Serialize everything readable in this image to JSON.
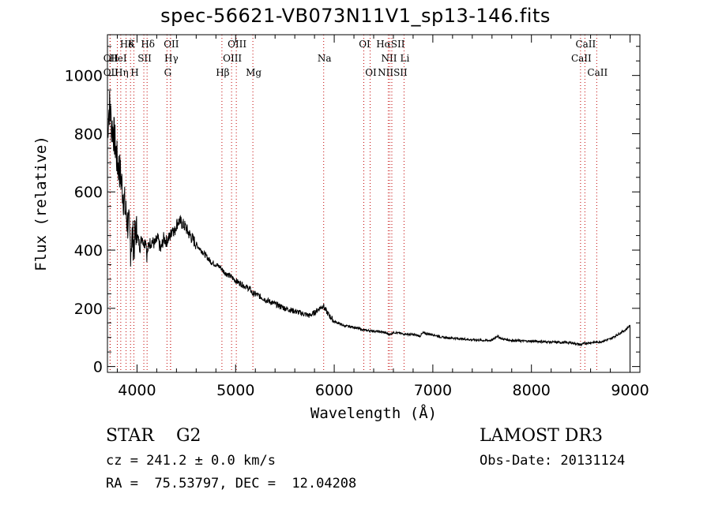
{
  "chart_data": {
    "type": "line",
    "title": "spec-56621-VB073N11V1_sp13-146.fits",
    "xlabel": "Wavelength (Å)",
    "ylabel": "Flux (relative)",
    "xlim": [
      3700,
      9100
    ],
    "ylim": [
      -20,
      1140
    ],
    "x_ticks": [
      4000,
      5000,
      6000,
      7000,
      8000,
      9000
    ],
    "y_ticks": [
      0,
      200,
      400,
      600,
      800,
      1000
    ],
    "x_tick_labels": [
      "4000",
      "5000",
      "6000",
      "7000",
      "8000",
      "9000"
    ],
    "y_tick_labels": [
      "0",
      "200",
      "400",
      "600",
      "800",
      "1000"
    ],
    "series": [
      {
        "name": "spectrum",
        "x": [
          3700,
          3710,
          3725,
          3740,
          3760,
          3780,
          3800,
          3820,
          3840,
          3860,
          3880,
          3900,
          3920,
          3935,
          3950,
          3970,
          3990,
          4010,
          4030,
          4050,
          4070,
          4090,
          4100,
          4120,
          4150,
          4180,
          4210,
          4240,
          4270,
          4300,
          4320,
          4340,
          4360,
          4380,
          4400,
          4430,
          4460,
          4490,
          4520,
          4560,
          4600,
          4650,
          4700,
          4750,
          4800,
          4850,
          4870,
          4900,
          4950,
          5000,
          5050,
          5100,
          5150,
          5170,
          5200,
          5300,
          5400,
          5500,
          5600,
          5700,
          5750,
          5800,
          5850,
          5870,
          5890,
          5900,
          5920,
          5950,
          6000,
          6100,
          6200,
          6300,
          6400,
          6500,
          6563,
          6600,
          6700,
          6800,
          6870,
          6900,
          7000,
          7100,
          7200,
          7300,
          7400,
          7500,
          7600,
          7650,
          7700,
          7800,
          7900,
          8000,
          8100,
          8200,
          8300,
          8400,
          8500,
          8540,
          8600,
          8700,
          8800,
          8900,
          8950,
          8980,
          9000
        ],
        "y": [
          780,
          870,
          900,
          830,
          810,
          760,
          700,
          680,
          640,
          590,
          540,
          500,
          470,
          410,
          450,
          420,
          470,
          440,
          410,
          450,
          420,
          440,
          380,
          420,
          430,
          420,
          440,
          400,
          440,
          430,
          440,
          450,
          480,
          460,
          490,
          500,
          490,
          480,
          460,
          440,
          420,
          400,
          380,
          360,
          350,
          340,
          330,
          320,
          310,
          295,
          285,
          275,
          265,
          250,
          250,
          230,
          215,
          200,
          190,
          180,
          175,
          185,
          200,
          205,
          210,
          200,
          190,
          175,
          155,
          140,
          135,
          125,
          122,
          118,
          110,
          118,
          112,
          110,
          105,
          115,
          110,
          100,
          98,
          95,
          92,
          90,
          90,
          105,
          95,
          90,
          88,
          87,
          86,
          84,
          83,
          82,
          75,
          80,
          82,
          85,
          95,
          115,
          125,
          135,
          140
        ]
      }
    ],
    "lines": [
      {
        "label": "Hδ",
        "x": 3889,
        "row": 0
      },
      {
        "label": "K",
        "x": 3934,
        "row": 0
      },
      {
        "label": "Hδ",
        "x": 4102,
        "row": 0
      },
      {
        "label": "OII",
        "x": 4340,
        "row": 0
      },
      {
        "label": "OIII",
        "x": 5007,
        "row": 0
      },
      {
        "label": "OI",
        "x": 6300,
        "row": 0
      },
      {
        "label": "HαSII",
        "x": 6563,
        "row": 0
      },
      {
        "label": "CaII",
        "x": 8542,
        "row": 0
      },
      {
        "label": "OII",
        "x": 3727,
        "row": 1
      },
      {
        "label": "HeI",
        "x": 3800,
        "row": 1
      },
      {
        "label": "SII",
        "x": 4069,
        "row": 1
      },
      {
        "label": "Hγ",
        "x": 4340,
        "row": 1
      },
      {
        "label": "OIII",
        "x": 4959,
        "row": 1
      },
      {
        "label": "Na",
        "x": 5893,
        "row": 1
      },
      {
        "label": "NII",
        "x": 6548,
        "row": 1
      },
      {
        "label": "Li",
        "x": 6708,
        "row": 1
      },
      {
        "label": "CaII",
        "x": 8498,
        "row": 1
      },
      {
        "label": "OII",
        "x": 3727,
        "row": 2
      },
      {
        "label": "Hη",
        "x": 3835,
        "row": 2
      },
      {
        "label": "H",
        "x": 3968,
        "row": 2
      },
      {
        "label": "G",
        "x": 4304,
        "row": 2
      },
      {
        "label": "Hβ",
        "x": 4861,
        "row": 2
      },
      {
        "label": "Mg",
        "x": 5175,
        "row": 2
      },
      {
        "label": "OI",
        "x": 6364,
        "row": 2
      },
      {
        "label": "NIISII",
        "x": 6584,
        "row": 2
      },
      {
        "label": "CaII",
        "x": 8662,
        "row": 2
      }
    ],
    "line_color": "#c00000"
  },
  "footer": {
    "object_class": "STAR    G2",
    "survey": "LAMOST DR3",
    "cz": "cz = 241.2 ± 0.0 km/s",
    "obs_date": "Obs-Date: 20131124",
    "coords": "RA =  75.53797, DEC =  12.04208"
  }
}
